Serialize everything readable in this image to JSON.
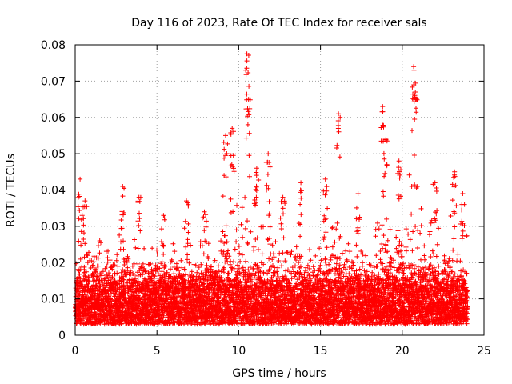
{
  "chart_data": {
    "type": "scatter",
    "title": "Day 116 of 2023, Rate Of TEC Index for receiver sals",
    "xlabel": "GPS time / hours",
    "ylabel": "ROTI / TECUs",
    "xlim": [
      0,
      25
    ],
    "ylim": [
      0,
      0.08
    ],
    "x_ticks": [
      0,
      5,
      10,
      15,
      20,
      25
    ],
    "x_tick_labels": [
      "0",
      "5",
      "10",
      "15",
      "20",
      "25"
    ],
    "y_ticks": [
      0,
      0.01,
      0.02,
      0.03,
      0.04,
      0.05,
      0.06,
      0.07,
      0.08
    ],
    "y_tick_labels": [
      "0",
      "0.01",
      "0.02",
      "0.03",
      "0.04",
      "0.05",
      "0.06",
      "0.07",
      "0.08"
    ],
    "grid": true,
    "marker": "+",
    "color": "#ff0000",
    "x_range_of_data": [
      0,
      24
    ],
    "typical_band": [
      0.003,
      0.02
    ],
    "peaks": [
      {
        "x": 0.3,
        "y": 0.043
      },
      {
        "x": 0.6,
        "y": 0.037
      },
      {
        "x": 1.5,
        "y": 0.026
      },
      {
        "x": 2.9,
        "y": 0.041
      },
      {
        "x": 3.9,
        "y": 0.038
      },
      {
        "x": 5.4,
        "y": 0.033
      },
      {
        "x": 6.8,
        "y": 0.037
      },
      {
        "x": 7.9,
        "y": 0.034
      },
      {
        "x": 9.2,
        "y": 0.055
      },
      {
        "x": 9.6,
        "y": 0.057
      },
      {
        "x": 10.5,
        "y": 0.0775
      },
      {
        "x": 10.6,
        "y": 0.065
      },
      {
        "x": 11.1,
        "y": 0.046
      },
      {
        "x": 11.8,
        "y": 0.05
      },
      {
        "x": 12.7,
        "y": 0.038
      },
      {
        "x": 13.8,
        "y": 0.042
      },
      {
        "x": 15.3,
        "y": 0.043
      },
      {
        "x": 16.1,
        "y": 0.061
      },
      {
        "x": 17.3,
        "y": 0.039
      },
      {
        "x": 18.8,
        "y": 0.063
      },
      {
        "x": 19.0,
        "y": 0.054
      },
      {
        "x": 19.8,
        "y": 0.048
      },
      {
        "x": 20.7,
        "y": 0.074
      },
      {
        "x": 20.8,
        "y": 0.067
      },
      {
        "x": 22.0,
        "y": 0.042
      },
      {
        "x": 23.2,
        "y": 0.045
      },
      {
        "x": 23.7,
        "y": 0.039
      }
    ]
  }
}
